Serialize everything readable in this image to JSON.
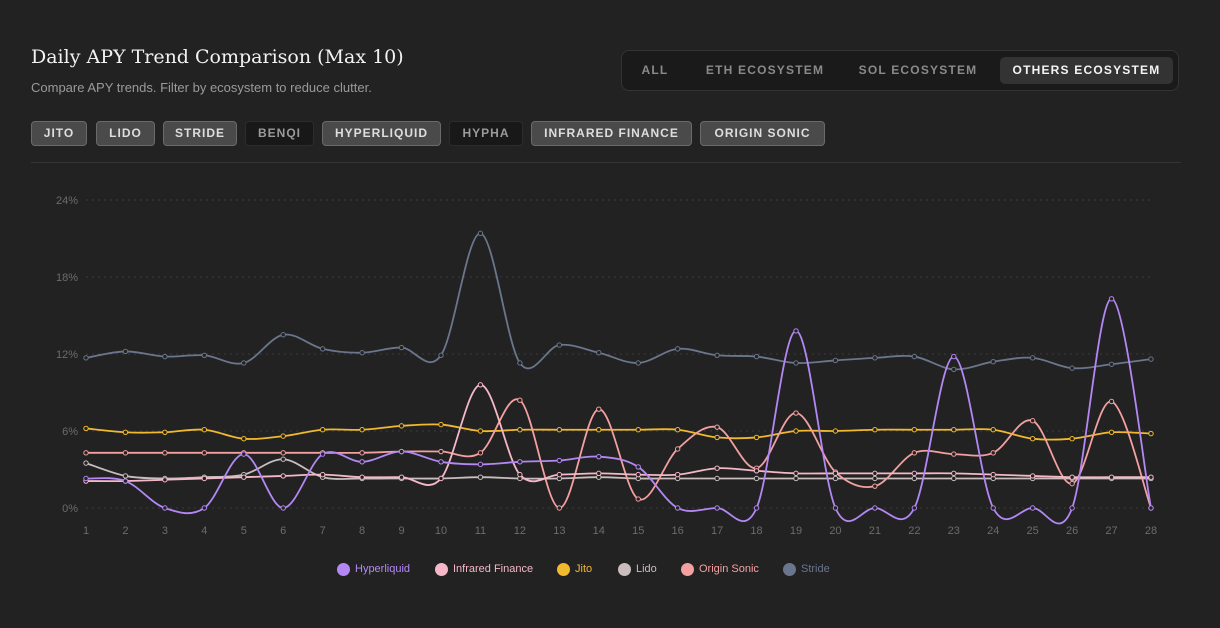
{
  "header": {
    "title": "Daily APY Trend Comparison (Max 10)",
    "subtitle": "Compare APY trends. Filter by ecosystem to reduce clutter."
  },
  "ecosystem_tabs": [
    {
      "label": "ALL",
      "active": false
    },
    {
      "label": "ETH ECOSYSTEM",
      "active": false
    },
    {
      "label": "SOL ECOSYSTEM",
      "active": false
    },
    {
      "label": "OTHERS ECOSYSTEM",
      "active": true
    }
  ],
  "protocol_chips": [
    {
      "label": "JITO",
      "selected": true
    },
    {
      "label": "LIDO",
      "selected": true
    },
    {
      "label": "STRIDE",
      "selected": true
    },
    {
      "label": "BENQI",
      "selected": false
    },
    {
      "label": "HYPERLIQUID",
      "selected": true
    },
    {
      "label": "HYPHA",
      "selected": false
    },
    {
      "label": "INFRARED FINANCE",
      "selected": true
    },
    {
      "label": "ORIGIN SONIC",
      "selected": true
    }
  ],
  "chart_data": {
    "type": "line",
    "x": [
      1,
      2,
      3,
      4,
      5,
      6,
      7,
      8,
      9,
      10,
      11,
      12,
      13,
      14,
      15,
      16,
      17,
      18,
      19,
      20,
      21,
      22,
      23,
      24,
      25,
      26,
      27,
      28
    ],
    "ylim": [
      0,
      24
    ],
    "yticks": [
      "0%",
      "6%",
      "12%",
      "18%",
      "24%"
    ],
    "ytick_values": [
      0,
      6,
      12,
      18,
      24
    ],
    "grid": true,
    "legend_position": "bottom-center",
    "series": [
      {
        "name": "Hyperliquid",
        "color": "#b388f5",
        "values": [
          2.3,
          2.1,
          0,
          0,
          4.2,
          0,
          4.2,
          3.6,
          4.4,
          3.6,
          3.4,
          3.6,
          3.7,
          4.0,
          3.2,
          0,
          0,
          0,
          13.8,
          0,
          0,
          0,
          11.8,
          0,
          0,
          0,
          16.3,
          0
        ]
      },
      {
        "name": "Infrared Finance",
        "color": "#f5b8c8",
        "values": [
          2.1,
          2.1,
          2.2,
          2.3,
          2.4,
          2.5,
          2.6,
          2.4,
          2.4,
          2.3,
          9.6,
          2.6,
          2.6,
          2.7,
          2.6,
          2.6,
          3.1,
          2.9,
          2.7,
          2.7,
          2.7,
          2.7,
          2.7,
          2.6,
          2.5,
          2.4,
          2.4,
          2.4
        ]
      },
      {
        "name": "Jito",
        "color": "#f0b92e",
        "values": [
          6.2,
          5.9,
          5.9,
          6.1,
          5.4,
          5.6,
          6.1,
          6.1,
          6.4,
          6.5,
          6.0,
          6.1,
          6.1,
          6.1,
          6.1,
          6.1,
          5.5,
          5.5,
          6.0,
          6.0,
          6.1,
          6.1,
          6.1,
          6.1,
          5.4,
          5.4,
          5.9,
          5.8
        ]
      },
      {
        "name": "Lido",
        "color": "#c9bdbd",
        "values": [
          3.5,
          2.5,
          2.3,
          2.4,
          2.6,
          3.8,
          2.4,
          2.3,
          2.3,
          2.3,
          2.4,
          2.3,
          2.3,
          2.4,
          2.3,
          2.3,
          2.3,
          2.3,
          2.3,
          2.3,
          2.3,
          2.3,
          2.3,
          2.3,
          2.3,
          2.3,
          2.3,
          2.3
        ]
      },
      {
        "name": "Origin Sonic",
        "color": "#f4a0a0",
        "values": [
          4.3,
          4.3,
          4.3,
          4.3,
          4.3,
          4.3,
          4.3,
          4.3,
          4.4,
          4.4,
          4.3,
          8.4,
          0,
          7.7,
          0.7,
          4.6,
          6.3,
          3.1,
          7.4,
          2.8,
          1.7,
          4.3,
          4.2,
          4.3,
          6.8,
          1.9,
          8.3,
          0
        ]
      },
      {
        "name": "Stride",
        "color": "#6a768c",
        "values": [
          11.7,
          12.2,
          11.8,
          11.9,
          11.3,
          13.5,
          12.4,
          12.1,
          12.5,
          11.9,
          21.4,
          11.3,
          12.7,
          12.1,
          11.3,
          12.4,
          11.9,
          11.8,
          11.3,
          11.5,
          11.7,
          11.8,
          10.8,
          11.4,
          11.7,
          10.9,
          11.2,
          11.6
        ]
      }
    ]
  }
}
